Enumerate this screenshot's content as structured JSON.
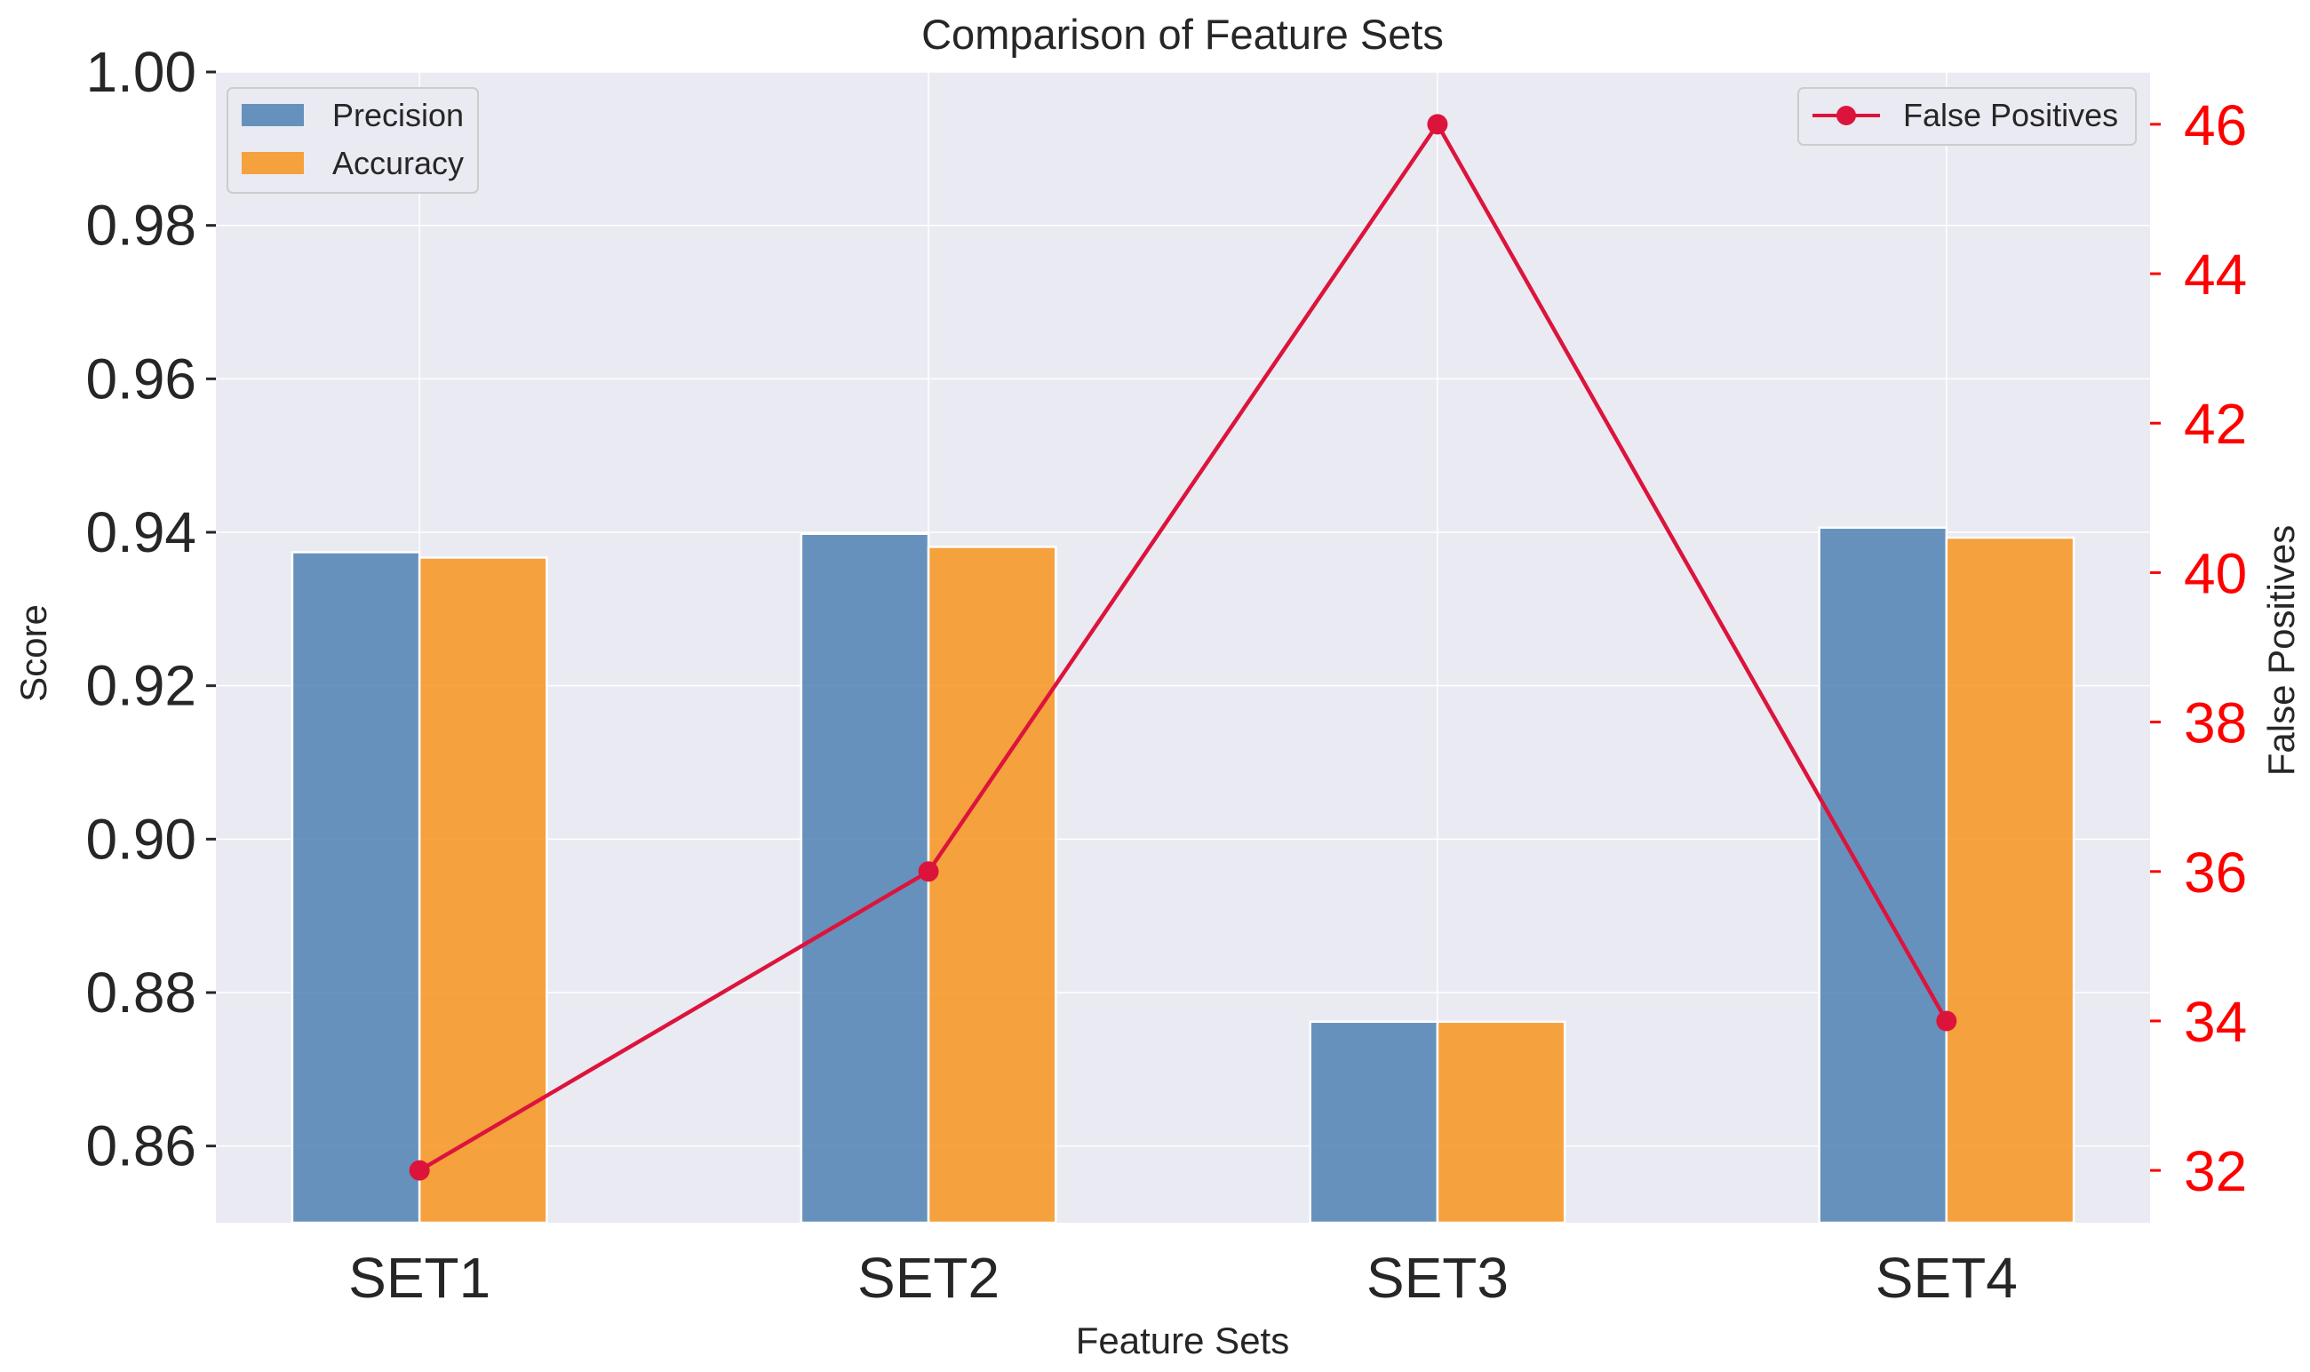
{
  "chart_data": {
    "type": "bar",
    "title": "Comparison of Feature Sets",
    "xlabel": "Feature Sets",
    "ylabel": "Score",
    "y2label": "False Positives",
    "categories": [
      "SET1",
      "SET2",
      "SET3",
      "SET4"
    ],
    "ylim": [
      0.85,
      1.0
    ],
    "yticks": [
      0.86,
      0.88,
      0.9,
      0.92,
      0.94,
      0.96,
      0.98,
      1.0
    ],
    "ytick_labels": [
      "0.86",
      "0.88",
      "0.90",
      "0.92",
      "0.94",
      "0.96",
      "0.98",
      "1.00"
    ],
    "y2lim": [
      31.3,
      46.7
    ],
    "y2ticks": [
      32,
      34,
      36,
      38,
      40,
      42,
      44,
      46
    ],
    "y2tick_labels": [
      "32",
      "34",
      "36",
      "38",
      "40",
      "42",
      "44",
      "46"
    ],
    "grid": true,
    "series": [
      {
        "name": "Precision",
        "type": "bar",
        "axis": "left",
        "color": "#4f81b3",
        "values": [
          0.9374,
          0.9398,
          0.8762,
          0.9406
        ]
      },
      {
        "name": "Accuracy",
        "type": "bar",
        "axis": "left",
        "color": "#f7941d",
        "values": [
          0.9367,
          0.9381,
          0.8762,
          0.9393
        ]
      },
      {
        "name": "False Positives",
        "type": "line",
        "axis": "right",
        "color": "#dc143c",
        "values": [
          32,
          36,
          46,
          34
        ]
      }
    ],
    "legend": {
      "bars_position": "upper-left",
      "line_position": "upper-right"
    },
    "plot_background": "#eaeaf2",
    "right_axis_color": "#ff0000"
  }
}
